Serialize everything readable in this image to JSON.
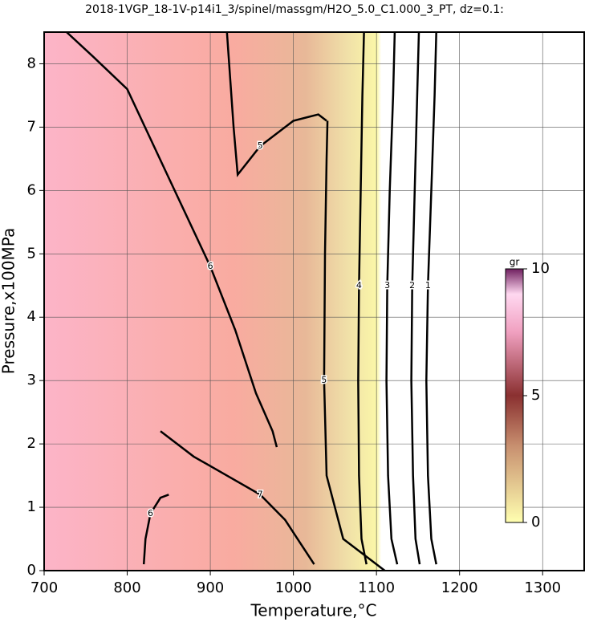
{
  "chart_data": {
    "type": "contour",
    "title": "2018-1VGP_18-1V-p14i1_3/spinel/massgm/H2O_5.0_C1.000_3_PT, dz=0.1:",
    "xlabel": "Temperature,°C",
    "ylabel": "Pressure,x100MPa",
    "xlim": [
      700,
      1350
    ],
    "ylim": [
      0,
      8.5
    ],
    "xticks": [
      700,
      800,
      900,
      1000,
      1100,
      1200,
      1300
    ],
    "yticks": [
      0,
      1,
      2,
      3,
      4,
      5,
      6,
      7,
      8
    ],
    "grid": true,
    "colorbar": {
      "label": "gr",
      "lim": [
        0,
        10
      ],
      "ticks": [
        0,
        5,
        10
      ]
    },
    "contours": [
      {
        "level": 4,
        "x": [
          1088,
          1082,
          1079,
          1078,
          1079,
          1081,
          1083,
          1085
        ],
        "y": [
          0.1,
          0.5,
          1.5,
          3,
          4.5,
          6,
          7.5,
          8.5
        ]
      },
      {
        "level": 3,
        "x": [
          1125,
          1118,
          1114,
          1112,
          1113,
          1116,
          1120,
          1122
        ],
        "y": [
          0.1,
          0.5,
          1.5,
          3,
          4.5,
          6,
          7.5,
          8.5
        ]
      },
      {
        "level": 2,
        "x": [
          1152,
          1147,
          1144,
          1142,
          1143,
          1146,
          1149,
          1151
        ],
        "y": [
          0.1,
          0.5,
          1.5,
          3,
          4.5,
          6,
          7.5,
          8.5
        ]
      },
      {
        "level": 1,
        "x": [
          1172,
          1166,
          1162,
          1160,
          1162,
          1166,
          1170,
          1172
        ],
        "y": [
          0.1,
          0.5,
          1.5,
          3,
          4.5,
          6,
          7.5,
          8.5
        ]
      },
      {
        "level": 5,
        "x": [
          1110,
          1060,
          1040,
          1037,
          1038,
          1040,
          1041
        ],
        "y": [
          0,
          0.5,
          1.5,
          3,
          5,
          6.5,
          7.1
        ]
      },
      {
        "level": 5,
        "x": [
          920,
          928,
          933,
          960,
          1000,
          1030,
          1040
        ],
        "y": [
          8.5,
          7,
          6.25,
          6.7,
          7.1,
          7.2,
          7.1
        ]
      },
      {
        "level": 6,
        "x": [
          727,
          760,
          800,
          850,
          900,
          930,
          955,
          975,
          980
        ],
        "y": [
          8.5,
          8.1,
          7.6,
          6.2,
          4.8,
          3.8,
          2.8,
          2.2,
          1.95
        ]
      },
      {
        "level": 7,
        "x": [
          840,
          880,
          920,
          960,
          990,
          1010,
          1025
        ],
        "y": [
          2.2,
          1.8,
          1.5,
          1.2,
          0.8,
          0.4,
          0.1
        ]
      },
      {
        "level": 6,
        "x": [
          820,
          822,
          828,
          840,
          850
        ],
        "y": [
          0.1,
          0.5,
          0.9,
          1.15,
          1.2
        ]
      }
    ]
  }
}
